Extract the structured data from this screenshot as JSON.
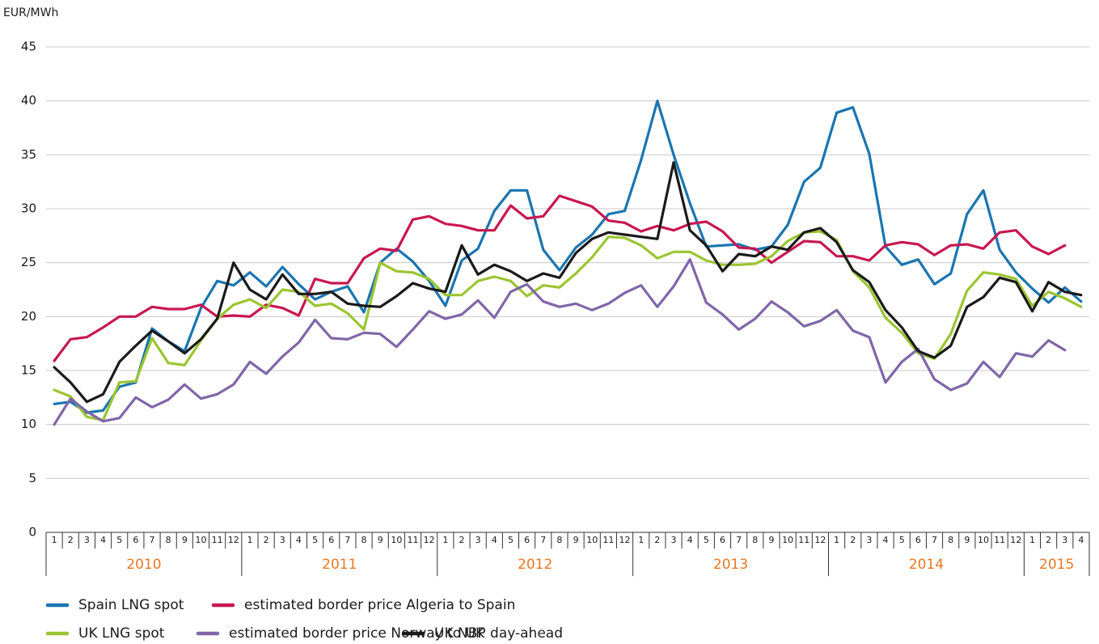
{
  "chart_data": {
    "type": "line",
    "y_axis_label": "EUR/MWh",
    "categories": [
      "1",
      "2",
      "3",
      "4",
      "5",
      "6",
      "7",
      "8",
      "9",
      "10",
      "11",
      "12",
      "1",
      "2",
      "3",
      "4",
      "5",
      "6",
      "7",
      "8",
      "9",
      "10",
      "11",
      "12",
      "1",
      "2",
      "3",
      "4",
      "5",
      "6",
      "7",
      "8",
      "9",
      "10",
      "11",
      "12",
      "1",
      "2",
      "3",
      "4",
      "5",
      "6",
      "7",
      "8",
      "9",
      "10",
      "11",
      "12",
      "1",
      "2",
      "3",
      "4",
      "5",
      "6",
      "7",
      "8",
      "9",
      "10",
      "11",
      "12",
      "1",
      "2",
      "3",
      "4"
    ],
    "years": [
      "2010",
      "2011",
      "2012",
      "2013",
      "2014",
      "2015"
    ],
    "ylim": [
      0,
      45
    ],
    "yticks": [
      0,
      5,
      10,
      15,
      20,
      25,
      30,
      35,
      40,
      45
    ],
    "grid": true,
    "series": [
      {
        "name": "Spain LNG spot",
        "color": "#1a75b0",
        "values": [
          11.9,
          12.1,
          11.1,
          11.3,
          13.5,
          13.9,
          18.9,
          17.7,
          16.8,
          20.8,
          23.3,
          22.9,
          24.1,
          22.8,
          24.6,
          23.0,
          21.6,
          22.3,
          22.8,
          20.4,
          25.0,
          26.3,
          25.1,
          23.3,
          21.0,
          25.2,
          26.3,
          29.8,
          31.7,
          31.7,
          26.2,
          24.3,
          26.4,
          27.6,
          29.5,
          29.8,
          34.5,
          40.0,
          35.0,
          30.5,
          26.5,
          26.6,
          26.7,
          26.2,
          26.5,
          28.5,
          32.5,
          33.8,
          38.9,
          39.4,
          35.1,
          26.5,
          24.8,
          25.3,
          23.0,
          24.0,
          29.5,
          31.7,
          26.2,
          24.1,
          22.6,
          21.3,
          22.7,
          21.4
        ]
      },
      {
        "name": "estimated border price Algeria to Spain",
        "color": "#c8174f",
        "values": [
          15.9,
          17.9,
          18.1,
          19.0,
          20.0,
          20.0,
          20.9,
          20.7,
          20.7,
          21.1,
          20.0,
          20.1,
          20.0,
          21.1,
          20.8,
          20.1,
          23.5,
          23.1,
          23.1,
          25.4,
          26.3,
          26.1,
          29.0,
          29.3,
          28.6,
          28.4,
          28.0,
          28.0,
          30.3,
          29.1,
          29.3,
          31.2,
          30.7,
          30.2,
          28.9,
          28.7,
          27.9,
          28.4,
          28.0,
          28.6,
          28.8,
          27.9,
          26.4,
          26.3,
          25.0,
          26.0,
          27.0,
          26.9,
          25.6,
          25.6,
          25.2,
          26.6,
          26.9,
          26.7,
          25.7,
          26.6,
          26.7,
          26.3,
          27.8,
          28.0,
          26.5,
          25.8,
          26.6,
          null
        ]
      },
      {
        "name": "UK LNG spot",
        "color": "#9bc531",
        "values": [
          13.2,
          12.6,
          10.7,
          10.4,
          13.9,
          14.0,
          18.0,
          15.7,
          15.5,
          17.8,
          19.8,
          21.1,
          21.6,
          20.8,
          22.5,
          22.3,
          21.0,
          21.2,
          20.3,
          18.8,
          25.0,
          24.2,
          24.1,
          23.5,
          22.0,
          22.0,
          23.3,
          23.7,
          23.3,
          21.9,
          22.9,
          22.7,
          24.0,
          25.5,
          27.4,
          27.3,
          26.6,
          25.4,
          26.0,
          26.0,
          25.2,
          24.8,
          24.8,
          24.9,
          25.6,
          27.0,
          27.8,
          27.9,
          27.1,
          24.2,
          22.7,
          19.9,
          18.5,
          16.6,
          16.1,
          18.4,
          22.4,
          24.1,
          23.9,
          23.5,
          21.0,
          22.3,
          21.7,
          20.9
        ]
      },
      {
        "name": "estimated border price Norway to UK",
        "color": "#8066a8",
        "values": [
          10.0,
          12.4,
          11.2,
          10.3,
          10.6,
          12.5,
          11.6,
          12.3,
          13.7,
          12.4,
          12.8,
          13.7,
          15.8,
          14.7,
          16.3,
          17.6,
          19.7,
          18.0,
          17.9,
          18.5,
          18.4,
          17.2,
          18.8,
          20.5,
          19.8,
          20.2,
          21.5,
          19.9,
          22.3,
          23.0,
          21.4,
          20.9,
          21.2,
          20.6,
          21.2,
          22.2,
          22.9,
          20.9,
          22.8,
          25.3,
          21.3,
          20.2,
          18.8,
          19.8,
          21.4,
          20.4,
          19.1,
          19.6,
          20.6,
          18.7,
          18.1,
          13.9,
          15.8,
          17.0,
          14.2,
          13.2,
          13.8,
          15.8,
          14.4,
          16.6,
          16.3,
          17.8,
          16.9,
          null
        ]
      },
      {
        "name": "UK NBP day-ahead",
        "color": "#1a1a1a",
        "values": [
          15.3,
          13.9,
          12.1,
          12.8,
          15.8,
          17.3,
          18.7,
          17.7,
          16.6,
          17.9,
          19.8,
          25.0,
          22.5,
          21.6,
          23.9,
          22.1,
          22.1,
          22.3,
          21.2,
          21.0,
          20.9,
          21.9,
          23.1,
          22.6,
          22.3,
          26.6,
          23.9,
          24.8,
          24.2,
          23.3,
          24.0,
          23.6,
          25.9,
          27.2,
          27.8,
          27.6,
          27.4,
          27.2,
          34.3,
          28.0,
          26.6,
          24.2,
          25.8,
          25.6,
          26.5,
          26.2,
          27.8,
          28.2,
          26.9,
          24.3,
          23.2,
          20.6,
          19.0,
          16.8,
          16.2,
          17.3,
          20.9,
          21.8,
          23.6,
          23.2,
          20.5,
          23.2,
          22.3,
          22.0
        ]
      }
    ]
  }
}
